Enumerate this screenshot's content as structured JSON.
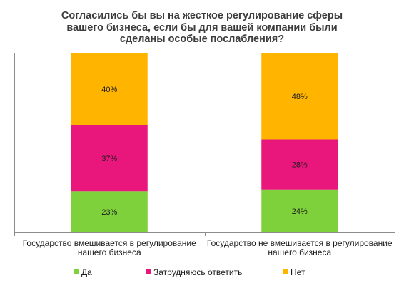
{
  "chart_data": {
    "type": "bar",
    "stacked": true,
    "percent": true,
    "title": "Согласились бы вы на жесткое регулирование сферы вашего бизнеса, если бы для вашей компании были сделаны особые послабления?",
    "title_lines": [
      "Согласились бы вы на жесткое регулирование сферы",
      "вашего бизнеса, если бы для вашей компании были",
      "сделаны особые послабления?"
    ],
    "categories": [
      [
        "Государство вмешивается в регулирование",
        "нашего бизнеса"
      ],
      [
        "Государство не вмешивается в регулирование",
        "нашего бизнеса"
      ]
    ],
    "series": [
      {
        "name": "Да",
        "values": [
          23,
          24
        ],
        "labels": [
          "23%",
          "24%"
        ],
        "color": "#7ed13a"
      },
      {
        "name": "Затрудняюсь ответить",
        "values": [
          37,
          28
        ],
        "labels": [
          "37%",
          "28%"
        ],
        "color": "#e9177c"
      },
      {
        "name": "Нет",
        "values": [
          40,
          48
        ],
        "labels": [
          "40%",
          "48%"
        ],
        "color": "#ffb400"
      }
    ],
    "ylim": [
      0,
      100
    ],
    "grid": false,
    "legend_position": "bottom"
  }
}
